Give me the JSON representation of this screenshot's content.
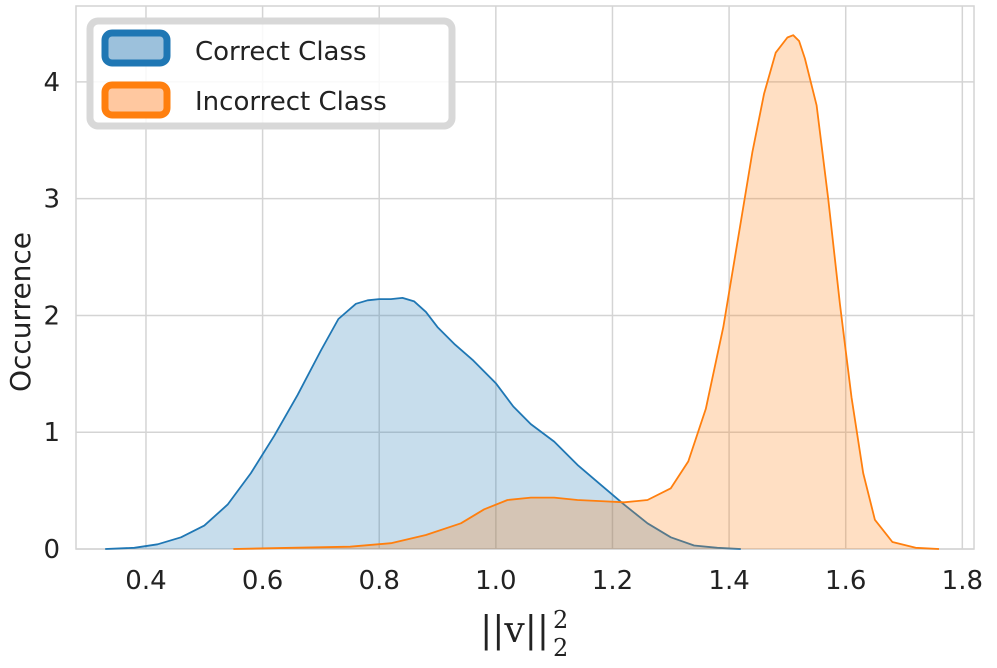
{
  "chart_data": {
    "type": "area",
    "title": "",
    "xlabel": "||v||",
    "xlabel_sub": "2",
    "xlabel_sup": "2",
    "ylabel": "Occurrence",
    "xlim": [
      0.28,
      1.82
    ],
    "ylim": [
      0,
      4.65
    ],
    "xticks": [
      0.4,
      0.6,
      0.8,
      1.0,
      1.2,
      1.4,
      1.6,
      1.8
    ],
    "xtick_labels": [
      "0.4",
      "0.6",
      "0.8",
      "1.0",
      "1.2",
      "1.4",
      "1.6",
      "1.8"
    ],
    "yticks": [
      0,
      1,
      2,
      3,
      4
    ],
    "ytick_labels": [
      "0",
      "1",
      "2",
      "3",
      "4"
    ],
    "grid": true,
    "legend_position": "top-left",
    "series": [
      {
        "name": "Correct Class",
        "color": "#1f77b4",
        "fill": "#9cc1dc",
        "x": [
          0.33,
          0.38,
          0.42,
          0.46,
          0.5,
          0.54,
          0.58,
          0.62,
          0.66,
          0.7,
          0.73,
          0.76,
          0.78,
          0.8,
          0.82,
          0.84,
          0.86,
          0.88,
          0.9,
          0.93,
          0.96,
          1.0,
          1.03,
          1.06,
          1.1,
          1.14,
          1.18,
          1.22,
          1.26,
          1.3,
          1.34,
          1.38,
          1.42
        ],
        "y": [
          0.0,
          0.01,
          0.04,
          0.1,
          0.2,
          0.38,
          0.65,
          0.97,
          1.32,
          1.7,
          1.97,
          2.1,
          2.13,
          2.14,
          2.14,
          2.15,
          2.12,
          2.03,
          1.9,
          1.75,
          1.62,
          1.42,
          1.22,
          1.07,
          0.92,
          0.72,
          0.55,
          0.38,
          0.22,
          0.1,
          0.03,
          0.01,
          0.0
        ]
      },
      {
        "name": "Incorrect Class",
        "color": "#ff7f0e",
        "fill": "#ffc8a0",
        "x": [
          0.55,
          0.65,
          0.75,
          0.82,
          0.88,
          0.94,
          0.98,
          1.02,
          1.06,
          1.1,
          1.14,
          1.18,
          1.22,
          1.26,
          1.3,
          1.33,
          1.36,
          1.39,
          1.42,
          1.44,
          1.46,
          1.48,
          1.5,
          1.51,
          1.52,
          1.53,
          1.55,
          1.57,
          1.59,
          1.61,
          1.63,
          1.65,
          1.68,
          1.72,
          1.76
        ],
        "y": [
          0.0,
          0.01,
          0.02,
          0.05,
          0.12,
          0.22,
          0.34,
          0.42,
          0.44,
          0.44,
          0.42,
          0.41,
          0.4,
          0.42,
          0.52,
          0.75,
          1.2,
          1.9,
          2.8,
          3.4,
          3.9,
          4.25,
          4.38,
          4.4,
          4.35,
          4.2,
          3.8,
          3.0,
          2.1,
          1.3,
          0.65,
          0.25,
          0.06,
          0.01,
          0.0
        ]
      }
    ]
  }
}
